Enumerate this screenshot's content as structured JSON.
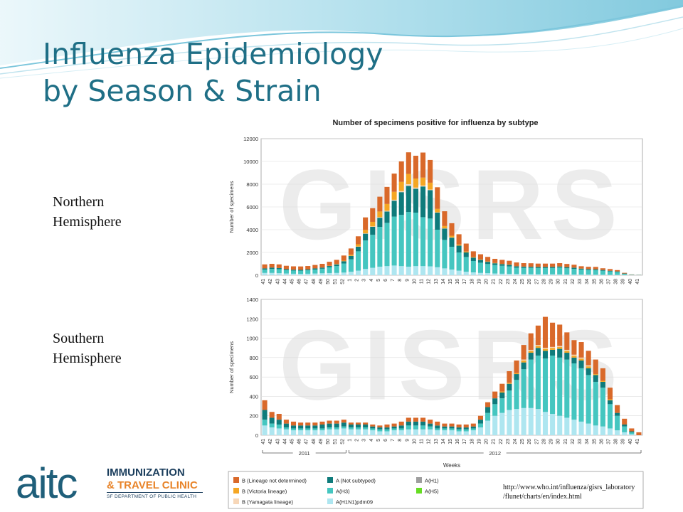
{
  "slide": {
    "title_line1": "Influenza Epidemiology",
    "title_line2": "by Season & Strain",
    "label_north_line1": "Northern",
    "label_north_line2": "Hemisphere",
    "label_south_line1": "Southern",
    "label_south_line2": "Hemisphere",
    "source_line1": "http://www.who.int/influenza/gisrs_laboratory",
    "source_line2": "/flunet/charts/en/index.html"
  },
  "logo": {
    "mark": "aitc",
    "line1": "IMMUNIZATION",
    "line2": "& TRAVEL CLINIC",
    "line3": "SF DEPARTMENT OF PUBLIC HEALTH"
  },
  "colors": {
    "title": "#1f6f86",
    "wave_light": "#bfe3ee",
    "wave_mid": "#7cc6dc"
  },
  "chart_data": {
    "type": "bar",
    "stacked": true,
    "title": "Number of specimens positive for influenza by subtype",
    "xlabel": "Weeks",
    "ylabel": "Number of specimens",
    "watermark": "GISRS",
    "categories": [
      "41",
      "42",
      "43",
      "44",
      "45",
      "46",
      "47",
      "48",
      "49",
      "50",
      "51",
      "52",
      "1",
      "2",
      "3",
      "4",
      "5",
      "6",
      "7",
      "8",
      "9",
      "10",
      "11",
      "12",
      "13",
      "14",
      "15",
      "16",
      "17",
      "18",
      "19",
      "20",
      "21",
      "22",
      "23",
      "24",
      "25",
      "26",
      "27",
      "28",
      "29",
      "30",
      "31",
      "32",
      "33",
      "34",
      "35",
      "36",
      "37",
      "38",
      "39",
      "40",
      "41"
    ],
    "year_groups": [
      {
        "label": "2011",
        "from": 0,
        "to": 11
      },
      {
        "label": "2012",
        "from": 12,
        "to": 52
      }
    ],
    "legend": [
      {
        "name": "B (Lineage not determined)",
        "color": "#d9692a"
      },
      {
        "name": "B (Victoria lineage)",
        "color": "#f5a623"
      },
      {
        "name": "B (Yamagata lineage)",
        "color": "#f7d7b8"
      },
      {
        "name": "A (Not subtyped)",
        "color": "#0e7b7b"
      },
      {
        "name": "A(H3)",
        "color": "#45c6c0"
      },
      {
        "name": "A(H1N1)pdm09",
        "color": "#aee6f0"
      },
      {
        "name": "A(H1)",
        "color": "#9e9e9e"
      },
      {
        "name": "A(H5)",
        "color": "#66dd22"
      }
    ],
    "panels": [
      {
        "name": "Northern Hemisphere",
        "yticks": [
          0,
          2000,
          4000,
          6000,
          8000,
          10000,
          12000
        ],
        "ylim": [
          0,
          12000
        ],
        "series": [
          {
            "name": "A(H1N1)pdm09",
            "values": [
              200,
              200,
              180,
              150,
              130,
              120,
              130,
              150,
              170,
              190,
              200,
              230,
              300,
              400,
              550,
              650,
              750,
              800,
              850,
              800,
              750,
              800,
              800,
              780,
              700,
              600,
              500,
              400,
              300,
              250,
              200,
              180,
              150,
              130,
              120,
              110,
              100,
              90,
              80,
              80,
              80,
              70,
              60,
              60,
              50,
              50,
              40,
              40,
              30,
              30,
              20,
              10,
              5
            ]
          },
          {
            "name": "A(H3)",
            "values": [
              300,
              350,
              350,
              300,
              280,
              280,
              300,
              350,
              400,
              500,
              600,
              800,
              1100,
              1700,
              2500,
              2900,
              3500,
              3800,
              4300,
              4500,
              4800,
              4700,
              4300,
              4200,
              3300,
              2500,
              2000,
              1600,
              1300,
              1000,
              900,
              800,
              750,
              700,
              650,
              550,
              550,
              550,
              550,
              550,
              550,
              600,
              550,
              500,
              450,
              400,
              400,
              350,
              300,
              250,
              100,
              30,
              20
            ]
          },
          {
            "name": "A (Not subtyped)",
            "values": [
              100,
              120,
              100,
              80,
              70,
              70,
              80,
              100,
              100,
              120,
              150,
              200,
              300,
              400,
              600,
              700,
              800,
              1000,
              1400,
              2000,
              2300,
              2100,
              2700,
              2500,
              1500,
              1000,
              800,
              600,
              400,
              300,
              250,
              200,
              150,
              150,
              150,
              120,
              100,
              100,
              100,
              100,
              100,
              100,
              100,
              100,
              80,
              80,
              80,
              70,
              60,
              50,
              30,
              10,
              5
            ]
          },
          {
            "name": "B (Yamagata lineage)",
            "values": [
              0,
              0,
              0,
              0,
              0,
              0,
              0,
              0,
              0,
              0,
              0,
              0,
              0,
              20,
              30,
              40,
              50,
              60,
              80,
              100,
              150,
              100,
              80,
              50,
              30,
              20,
              20,
              0,
              0,
              0,
              0,
              0,
              0,
              0,
              0,
              0,
              0,
              0,
              0,
              0,
              0,
              0,
              0,
              0,
              0,
              0,
              0,
              0,
              0,
              0,
              0,
              0,
              0
            ]
          },
          {
            "name": "B (Victoria lineage)",
            "values": [
              0,
              0,
              0,
              0,
              0,
              0,
              0,
              0,
              0,
              20,
              30,
              50,
              100,
              200,
              300,
              400,
              500,
              600,
              700,
              800,
              900,
              800,
              700,
              600,
              300,
              200,
              150,
              100,
              80,
              50,
              40,
              30,
              20,
              20,
              20,
              10,
              10,
              10,
              10,
              10,
              10,
              10,
              10,
              10,
              10,
              10,
              10,
              0,
              0,
              0,
              0,
              0,
              0
            ]
          },
          {
            "name": "B (Lineage not determined)",
            "values": [
              350,
              330,
              320,
              300,
              300,
              300,
              300,
              300,
              330,
              350,
              370,
              450,
              550,
              700,
              1100,
              1200,
              1300,
              1500,
              1600,
              1800,
              1900,
              2000,
              2200,
              2000,
              1900,
              1300,
              1100,
              900,
              700,
              500,
              450,
              400,
              370,
              350,
              330,
              330,
              300,
              300,
              280,
              280,
              280,
              280,
              270,
              250,
              200,
              200,
              200,
              150,
              150,
              120,
              60,
              20,
              10
            ]
          },
          {
            "name": "A(H1)",
            "values": [
              0,
              0,
              0,
              0,
              0,
              0,
              0,
              0,
              0,
              0,
              0,
              0,
              0,
              0,
              0,
              0,
              0,
              0,
              0,
              0,
              0,
              0,
              0,
              0,
              0,
              0,
              0,
              0,
              0,
              0,
              0,
              0,
              0,
              0,
              0,
              0,
              0,
              0,
              0,
              0,
              0,
              0,
              0,
              0,
              0,
              0,
              0,
              0,
              0,
              0,
              0,
              0,
              0
            ]
          },
          {
            "name": "A(H5)",
            "values": [
              0,
              0,
              0,
              0,
              0,
              0,
              0,
              0,
              0,
              0,
              0,
              0,
              0,
              0,
              0,
              0,
              0,
              0,
              0,
              0,
              0,
              0,
              0,
              0,
              0,
              0,
              0,
              0,
              0,
              0,
              0,
              0,
              0,
              0,
              0,
              0,
              0,
              0,
              0,
              0,
              0,
              0,
              0,
              0,
              0,
              0,
              0,
              0,
              0,
              0,
              0,
              0,
              0
            ]
          }
        ]
      },
      {
        "name": "Southern Hemisphere",
        "yticks": [
          0,
          200,
          400,
          600,
          800,
          1000,
          1200,
          1400
        ],
        "ylim": [
          0,
          1400
        ],
        "series": [
          {
            "name": "A(H1N1)pdm09",
            "values": [
              100,
              80,
              70,
              60,
              50,
              50,
              50,
              50,
              50,
              60,
              60,
              70,
              60,
              60,
              60,
              50,
              40,
              40,
              50,
              50,
              60,
              60,
              60,
              60,
              50,
              50,
              50,
              40,
              40,
              50,
              80,
              150,
              200,
              230,
              260,
              270,
              280,
              280,
              270,
              240,
              220,
              200,
              180,
              160,
              140,
              120,
              100,
              90,
              70,
              50,
              30,
              10,
              0
            ]
          },
          {
            "name": "A(H3)",
            "values": [
              60,
              40,
              40,
              20,
              20,
              20,
              20,
              20,
              20,
              20,
              20,
              20,
              20,
              20,
              20,
              20,
              20,
              20,
              20,
              20,
              40,
              40,
              40,
              30,
              20,
              20,
              20,
              20,
              20,
              20,
              40,
              80,
              120,
              150,
              200,
              300,
              400,
              500,
              550,
              550,
              600,
              600,
              600,
              580,
              550,
              500,
              450,
              400,
              250,
              150,
              60,
              20,
              0
            ]
          },
          {
            "name": "A (Not subtyped)",
            "values": [
              100,
              60,
              50,
              40,
              30,
              30,
              30,
              30,
              40,
              40,
              40,
              40,
              30,
              30,
              30,
              20,
              20,
              20,
              20,
              30,
              40,
              40,
              40,
              30,
              30,
              20,
              20,
              20,
              20,
              20,
              40,
              60,
              60,
              60,
              70,
              60,
              70,
              70,
              80,
              80,
              60,
              90,
              70,
              60,
              80,
              70,
              70,
              60,
              40,
              30,
              20,
              10,
              0
            ]
          },
          {
            "name": "B (Victoria lineage)",
            "values": [
              0,
              0,
              0,
              0,
              0,
              0,
              0,
              0,
              0,
              0,
              0,
              0,
              0,
              0,
              0,
              0,
              0,
              0,
              0,
              0,
              0,
              0,
              0,
              0,
              0,
              0,
              0,
              0,
              0,
              0,
              0,
              0,
              0,
              10,
              10,
              10,
              20,
              20,
              20,
              20,
              20,
              20,
              20,
              20,
              20,
              20,
              10,
              10,
              10,
              0,
              0,
              0,
              0
            ]
          },
          {
            "name": "B (Yamagata lineage)",
            "values": [
              0,
              0,
              0,
              0,
              0,
              0,
              0,
              0,
              0,
              0,
              0,
              0,
              0,
              0,
              0,
              0,
              0,
              0,
              0,
              0,
              0,
              0,
              0,
              0,
              0,
              0,
              0,
              0,
              0,
              0,
              0,
              0,
              0,
              0,
              0,
              0,
              10,
              10,
              10,
              10,
              10,
              10,
              10,
              10,
              10,
              10,
              0,
              0,
              0,
              0,
              0,
              0,
              0
            ]
          },
          {
            "name": "B (Lineage not determined)",
            "values": [
              100,
              60,
              60,
              40,
              40,
              30,
              30,
              30,
              30,
              30,
              30,
              30,
              20,
              20,
              20,
              20,
              20,
              30,
              30,
              40,
              40,
              40,
              40,
              40,
              40,
              30,
              30,
              30,
              30,
              30,
              40,
              50,
              70,
              80,
              120,
              130,
              150,
              170,
              200,
              320,
              250,
              220,
              180,
              150,
              160,
              150,
              150,
              130,
              120,
              80,
              60,
              30,
              30
            ]
          },
          {
            "name": "A(H1)",
            "values": [
              0,
              0,
              0,
              0,
              0,
              0,
              0,
              0,
              0,
              0,
              0,
              0,
              0,
              0,
              0,
              0,
              0,
              0,
              0,
              0,
              0,
              0,
              0,
              0,
              0,
              0,
              0,
              0,
              0,
              0,
              0,
              0,
              0,
              0,
              0,
              0,
              0,
              0,
              0,
              0,
              0,
              0,
              0,
              0,
              0,
              0,
              0,
              0,
              0,
              0,
              0,
              0,
              0
            ]
          },
          {
            "name": "A(H5)",
            "values": [
              0,
              0,
              0,
              0,
              0,
              0,
              0,
              0,
              0,
              0,
              0,
              0,
              0,
              0,
              0,
              0,
              0,
              0,
              0,
              0,
              0,
              0,
              0,
              0,
              0,
              0,
              0,
              0,
              0,
              0,
              0,
              0,
              0,
              0,
              0,
              0,
              0,
              0,
              0,
              0,
              0,
              0,
              0,
              0,
              0,
              0,
              0,
              0,
              0,
              0,
              0,
              0,
              0
            ]
          }
        ]
      }
    ]
  }
}
